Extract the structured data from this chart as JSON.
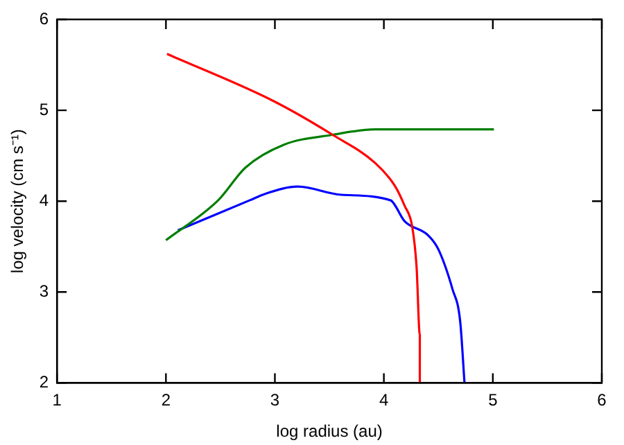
{
  "chart_data": {
    "type": "line",
    "xlabel": "log radius (au)",
    "ylabel": "log velocity (cm s⁻¹)",
    "xlim": [
      1,
      6
    ],
    "xticks": [
      1,
      2,
      3,
      4,
      5,
      6
    ],
    "ylim": [
      2,
      6
    ],
    "yticks": [
      2,
      3,
      4,
      5,
      6
    ],
    "grid": false,
    "legend": false,
    "marker": "none",
    "line_style": "solid",
    "series": [
      {
        "color": "#ff0000",
        "x": [
          2.01,
          2.99,
          3.53,
          3.92,
          4.1,
          4.19,
          4.26,
          4.3,
          4.33,
          4.33
        ],
        "values": [
          5.62,
          5.1,
          4.73,
          4.42,
          4.17,
          3.95,
          3.72,
          3.28,
          2.53,
          2.0
        ]
      },
      {
        "color": "#007f00",
        "x": [
          2.0,
          2.48,
          2.73,
          3.08,
          3.53,
          3.92,
          5.01
        ],
        "values": [
          3.57,
          4.01,
          4.37,
          4.62,
          4.73,
          4.79,
          4.79
        ]
      },
      {
        "color": "#0000ff",
        "x": [
          2.11,
          2.77,
          2.91,
          3.21,
          3.61,
          4.06,
          4.19,
          4.41,
          4.5,
          4.63,
          4.7,
          4.74
        ],
        "values": [
          3.68,
          4.01,
          4.08,
          4.16,
          4.07,
          4.01,
          3.78,
          3.62,
          3.47,
          3.03,
          2.68,
          2.0
        ]
      }
    ]
  }
}
